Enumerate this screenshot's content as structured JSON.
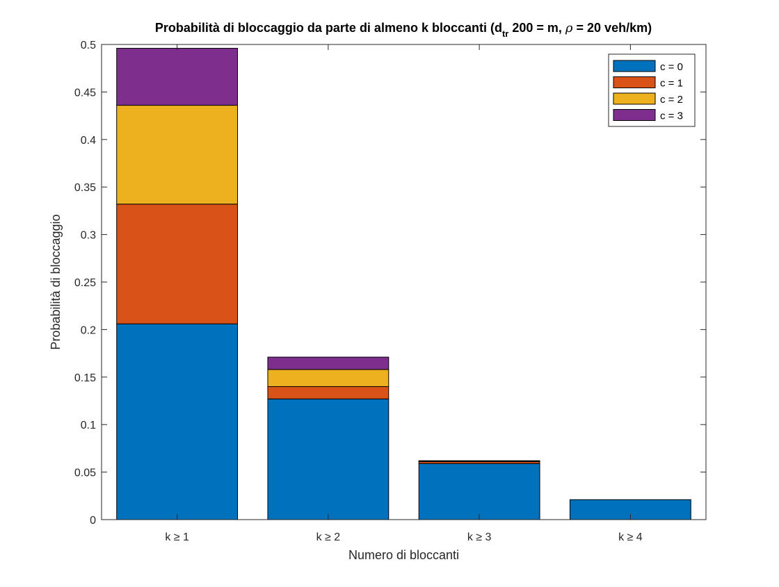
{
  "chart_data": {
    "type": "bar",
    "stacked": true,
    "title": {
      "prefix": "Probabilità di bloccaggio da parte di almeno k bloccanti (d",
      "subscript": "tr",
      "middle": " 200 = m, ",
      "rho": "ρ",
      "suffix": " = 20 veh/km)"
    },
    "xlabel": "Numero di bloccanti",
    "ylabel": "Probabilità di bloccaggio",
    "categories": [
      "k ≥ 1",
      "k ≥ 2",
      "k ≥ 3",
      "k ≥ 4"
    ],
    "ylim": [
      0,
      0.5
    ],
    "yticks": [
      0,
      0.05,
      0.1,
      0.15,
      0.2,
      0.25,
      0.3,
      0.35,
      0.4,
      0.45,
      0.5
    ],
    "ytick_labels": [
      "0",
      "0.05",
      "0.1",
      "0.15",
      "0.2",
      "0.25",
      "0.3",
      "0.35",
      "0.4",
      "0.45",
      "0.5"
    ],
    "grid": false,
    "box": true,
    "legend_position": "top-right",
    "series": [
      {
        "name": "c = 0",
        "color": "#0072BD",
        "values": [
          0.206,
          0.127,
          0.059,
          0.021
        ]
      },
      {
        "name": "c = 1",
        "color": "#D95319",
        "values": [
          0.126,
          0.013,
          0.002,
          0.0
        ]
      },
      {
        "name": "c = 2",
        "color": "#EDB120",
        "values": [
          0.104,
          0.018,
          0.0005,
          0.0
        ]
      },
      {
        "name": "c = 3",
        "color": "#7E2F8E",
        "values": [
          0.06,
          0.013,
          0.0005,
          0.0
        ]
      }
    ]
  }
}
